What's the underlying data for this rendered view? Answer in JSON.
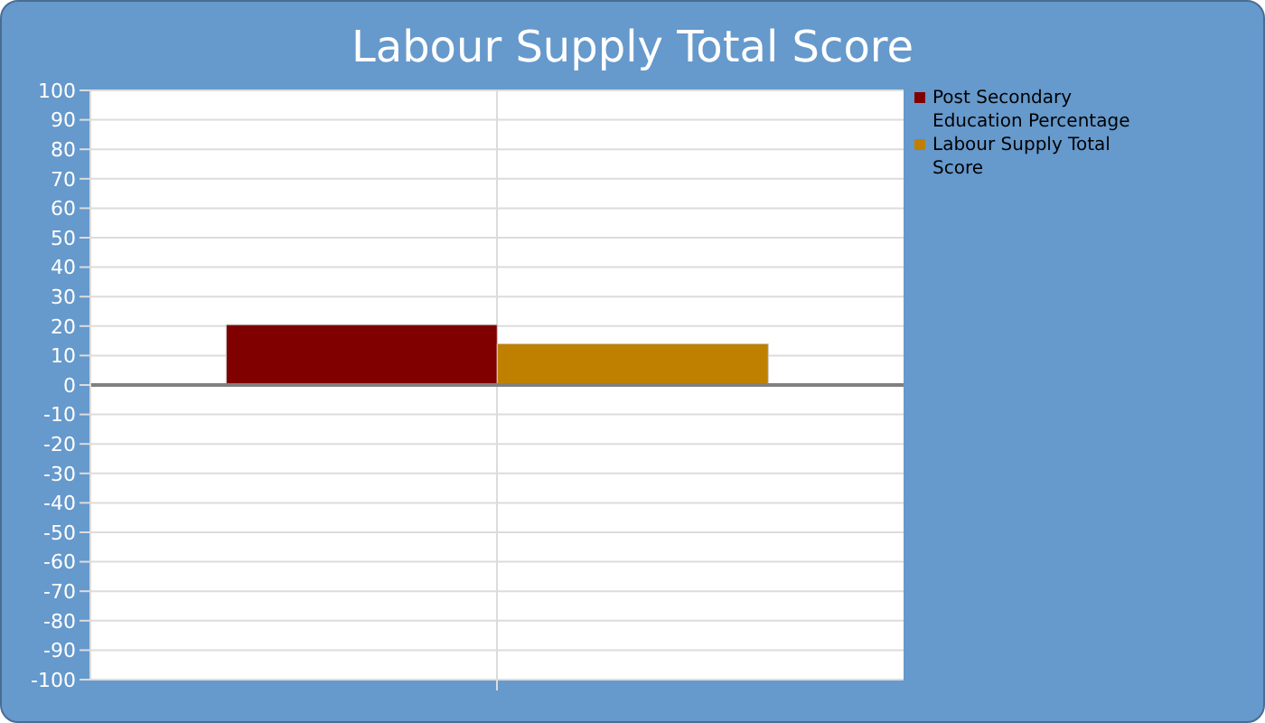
{
  "chart_data": {
    "type": "bar",
    "title": "Labour Supply Total Score",
    "categories": [
      null
    ],
    "series": [
      {
        "name": "Post Secondary Education Percentage",
        "color": "#800000",
        "values": [
          20.5
        ]
      },
      {
        "name": "Labour Supply Total Score",
        "color": "#bf8000",
        "values": [
          14
        ]
      }
    ],
    "ylim": [
      -100,
      100
    ],
    "yticks": [
      -100,
      -90,
      -80,
      -70,
      -60,
      -50,
      -40,
      -30,
      -20,
      -10,
      0,
      10,
      20,
      30,
      40,
      50,
      60,
      70,
      80,
      90,
      100
    ],
    "grid": true,
    "legend": "top right",
    "ref_lines": [
      {
        "axis": "y",
        "value": 0,
        "color": "#808080"
      }
    ]
  }
}
